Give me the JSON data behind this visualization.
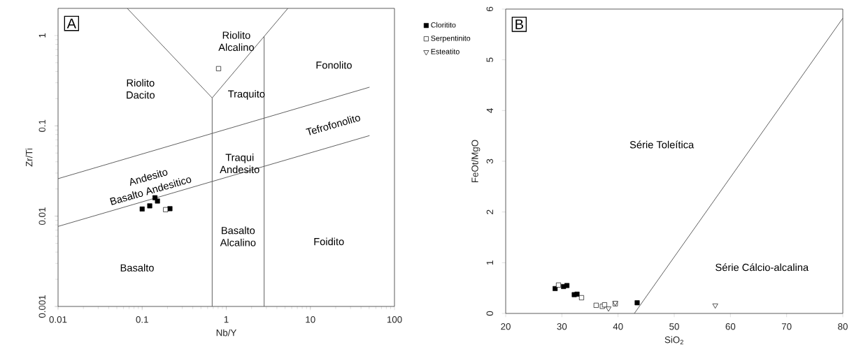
{
  "chart_data": [
    {
      "type": "scatter",
      "xlabel": "Nb/Y",
      "ylabel": "Zr/Ti",
      "log": "xy",
      "xlim": [
        0.01,
        100
      ],
      "ylim": [
        0.001,
        2
      ],
      "xticks": [
        0.01,
        0.1,
        1,
        10,
        100
      ],
      "yticks": [
        0.001,
        0.01,
        0.1,
        1
      ],
      "annotations": [
        "A",
        "Riolito Alcalino",
        "Riolito Dacito",
        "Traquito",
        "Fonolito",
        "Tefrofonolito",
        "Traqui Andesito",
        "Andesito",
        "Basalto Andesitico",
        "Basalto Alcalino",
        "Foidito",
        "Basalto"
      ],
      "series": [
        {
          "marker": "square",
          "color": "#000000",
          "x": [
            0.1,
            0.123,
            0.142,
            0.152,
            0.214
          ],
          "values": [
            0.012,
            0.013,
            0.016,
            0.0147,
            0.0121
          ]
        },
        {
          "marker": "square",
          "color": "#ffffff",
          "x": [
            0.19,
            0.81
          ],
          "values": [
            0.0118,
            0.43
          ]
        },
        {
          "type": "line",
          "color": "#555555",
          "x": [
            0.0665,
            0.68
          ],
          "values": [
            2,
            0.204
          ]
        },
        {
          "type": "line",
          "color": "#555555",
          "x": [
            0.68,
            5.4
          ],
          "values": [
            0.204,
            2
          ]
        },
        {
          "type": "line",
          "color": "#555555",
          "x": [
            0.68,
            0.68
          ],
          "values": [
            0.204,
            0.001
          ]
        },
        {
          "type": "line",
          "color": "#555555",
          "x": [
            2.82,
            2.82
          ],
          "values": [
            0.98,
            0.001
          ]
        },
        {
          "type": "line",
          "color": "#555555",
          "x": [
            0.01,
            50.5
          ],
          "values": [
            0.026,
            0.268
          ]
        },
        {
          "type": "line",
          "color": "#555555",
          "x": [
            0.01,
            50.5
          ],
          "values": [
            0.0077,
            0.078
          ]
        }
      ]
    },
    {
      "type": "scatter",
      "xlabel": "SiO$_{2}$",
      "ylabel": "FeOt/MgO",
      "xlim": [
        20,
        80
      ],
      "ylim": [
        0,
        6
      ],
      "xticks": [
        20,
        30,
        40,
        50,
        60,
        70,
        80
      ],
      "yticks": [
        0,
        1,
        2,
        3,
        4,
        5,
        6
      ],
      "legend": "left",
      "annotations": [
        "B",
        "Série Toleítica",
        "Série Cálcio-alcalina"
      ],
      "series": [
        {
          "name": "Cloritito",
          "marker": "square",
          "color": "#000000",
          "x": [
            28.8,
            30.3,
            30.9,
            32.2,
            32.7,
            43.4
          ],
          "values": [
            0.49,
            0.53,
            0.55,
            0.37,
            0.38,
            0.21
          ]
        },
        {
          "name": "Serpentinito",
          "marker": "square",
          "color": "#ffffff",
          "x": [
            29.4,
            33.5,
            36.1,
            37.2,
            37.6,
            39.5
          ],
          "values": [
            0.56,
            0.31,
            0.16,
            0.14,
            0.17,
            0.19
          ]
        },
        {
          "name": "Esteatito",
          "marker": "triangle",
          "color": "#ffffff",
          "x": [
            38.3,
            39.5,
            57.3
          ],
          "values": [
            0.1,
            0.21,
            0.16
          ]
        },
        {
          "type": "line",
          "color": "#555555",
          "x": [
            42.9,
            80
          ],
          "values": [
            0,
            5.82
          ]
        }
      ]
    }
  ]
}
